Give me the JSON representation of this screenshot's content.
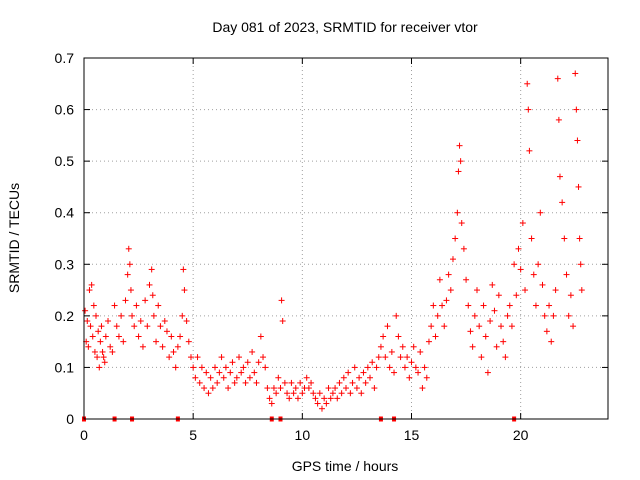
{
  "chart_data": {
    "type": "scatter",
    "title": "Day 081 of 2023, SRMTID for receiver vtor",
    "xlabel": "GPS time / hours",
    "ylabel": "SRMTID / TECUs",
    "xlim": [
      0,
      24
    ],
    "ylim": [
      0,
      0.7
    ],
    "xticks": [
      0,
      5,
      10,
      15,
      20
    ],
    "yticks": [
      0,
      0.1,
      0.2,
      0.3,
      0.4,
      0.5,
      0.6,
      0.7
    ],
    "xtick_labels": [
      "0",
      "5",
      "10",
      "15",
      "20"
    ],
    "ytick_labels": [
      "0",
      "0.1",
      "0.2",
      "0.3",
      "0.4",
      "0.5",
      "0.6",
      "0.7"
    ],
    "grid": true,
    "marker": "+",
    "series": [
      {
        "name": "SRMTID",
        "color": "#ff0000",
        "points": [
          [
            0.05,
            0.21
          ],
          [
            0.1,
            0.15
          ],
          [
            0.15,
            0.19
          ],
          [
            0.2,
            0.14
          ],
          [
            0.25,
            0.25
          ],
          [
            0.3,
            0.18
          ],
          [
            0.35,
            0.26
          ],
          [
            0.4,
            0.16
          ],
          [
            0.45,
            0.22
          ],
          [
            0.5,
            0.13
          ],
          [
            0.55,
            0.2
          ],
          [
            0.6,
            0.12
          ],
          [
            0.65,
            0.17
          ],
          [
            0.7,
            0.1
          ],
          [
            0.75,
            0.15
          ],
          [
            0.8,
            0.18
          ],
          [
            0.85,
            0.13
          ],
          [
            0.9,
            0.12
          ],
          [
            0.95,
            0.11
          ],
          [
            1.0,
            0.16
          ],
          [
            1.1,
            0.19
          ],
          [
            1.2,
            0.14
          ],
          [
            1.3,
            0.13
          ],
          [
            1.4,
            0.22
          ],
          [
            1.5,
            0.18
          ],
          [
            1.6,
            0.16
          ],
          [
            1.7,
            0.2
          ],
          [
            1.8,
            0.15
          ],
          [
            1.9,
            0.23
          ],
          [
            2.0,
            0.28
          ],
          [
            2.05,
            0.33
          ],
          [
            2.1,
            0.3
          ],
          [
            2.15,
            0.25
          ],
          [
            2.2,
            0.2
          ],
          [
            2.3,
            0.18
          ],
          [
            2.4,
            0.22
          ],
          [
            2.5,
            0.16
          ],
          [
            2.6,
            0.19
          ],
          [
            2.7,
            0.14
          ],
          [
            2.8,
            0.23
          ],
          [
            2.9,
            0.18
          ],
          [
            3.0,
            0.26
          ],
          [
            3.1,
            0.29
          ],
          [
            3.15,
            0.24
          ],
          [
            3.2,
            0.2
          ],
          [
            3.3,
            0.15
          ],
          [
            3.4,
            0.22
          ],
          [
            3.5,
            0.18
          ],
          [
            3.6,
            0.14
          ],
          [
            3.7,
            0.19
          ],
          [
            3.8,
            0.17
          ],
          [
            3.9,
            0.12
          ],
          [
            4.0,
            0.16
          ],
          [
            4.1,
            0.13
          ],
          [
            4.2,
            0.1
          ],
          [
            4.3,
            0.14
          ],
          [
            4.4,
            0.16
          ],
          [
            4.5,
            0.2
          ],
          [
            4.55,
            0.29
          ],
          [
            4.6,
            0.25
          ],
          [
            4.7,
            0.19
          ],
          [
            4.8,
            0.15
          ],
          [
            4.9,
            0.12
          ],
          [
            5.0,
            0.1
          ],
          [
            5.1,
            0.08
          ],
          [
            5.2,
            0.12
          ],
          [
            5.3,
            0.07
          ],
          [
            5.4,
            0.1
          ],
          [
            5.5,
            0.06
          ],
          [
            5.6,
            0.09
          ],
          [
            5.7,
            0.05
          ],
          [
            5.8,
            0.08
          ],
          [
            5.9,
            0.06
          ],
          [
            6.0,
            0.1
          ],
          [
            6.1,
            0.07
          ],
          [
            6.2,
            0.09
          ],
          [
            6.3,
            0.12
          ],
          [
            6.4,
            0.08
          ],
          [
            6.5,
            0.1
          ],
          [
            6.6,
            0.06
          ],
          [
            6.7,
            0.09
          ],
          [
            6.8,
            0.11
          ],
          [
            6.9,
            0.07
          ],
          [
            7.0,
            0.08
          ],
          [
            7.1,
            0.12
          ],
          [
            7.2,
            0.09
          ],
          [
            7.3,
            0.1
          ],
          [
            7.4,
            0.07
          ],
          [
            7.5,
            0.11
          ],
          [
            7.6,
            0.08
          ],
          [
            7.7,
            0.13
          ],
          [
            7.8,
            0.09
          ],
          [
            7.9,
            0.07
          ],
          [
            8.0,
            0.11
          ],
          [
            8.1,
            0.16
          ],
          [
            8.2,
            0.12
          ],
          [
            8.3,
            0.1
          ],
          [
            8.4,
            0.06
          ],
          [
            8.5,
            0.04
          ],
          [
            8.6,
            0.03
          ],
          [
            8.7,
            0.06
          ],
          [
            8.8,
            0.05
          ],
          [
            8.9,
            0.08
          ],
          [
            9.0,
            0.06
          ],
          [
            9.05,
            0.23
          ],
          [
            9.1,
            0.19
          ],
          [
            9.2,
            0.07
          ],
          [
            9.3,
            0.05
          ],
          [
            9.4,
            0.04
          ],
          [
            9.5,
            0.07
          ],
          [
            9.6,
            0.05
          ],
          [
            9.7,
            0.06
          ],
          [
            9.8,
            0.04
          ],
          [
            9.9,
            0.07
          ],
          [
            10.0,
            0.05
          ],
          [
            10.1,
            0.06
          ],
          [
            10.2,
            0.08
          ],
          [
            10.3,
            0.06
          ],
          [
            10.4,
            0.07
          ],
          [
            10.5,
            0.05
          ],
          [
            10.6,
            0.04
          ],
          [
            10.7,
            0.03
          ],
          [
            10.8,
            0.05
          ],
          [
            10.9,
            0.02
          ],
          [
            11.0,
            0.04
          ],
          [
            11.1,
            0.03
          ],
          [
            11.2,
            0.06
          ],
          [
            11.3,
            0.04
          ],
          [
            11.4,
            0.05
          ],
          [
            11.5,
            0.06
          ],
          [
            11.6,
            0.04
          ],
          [
            11.7,
            0.07
          ],
          [
            11.8,
            0.05
          ],
          [
            11.9,
            0.08
          ],
          [
            12.0,
            0.06
          ],
          [
            12.1,
            0.09
          ],
          [
            12.2,
            0.05
          ],
          [
            12.3,
            0.07
          ],
          [
            12.4,
            0.1
          ],
          [
            12.5,
            0.06
          ],
          [
            12.6,
            0.08
          ],
          [
            12.7,
            0.05
          ],
          [
            12.8,
            0.09
          ],
          [
            12.9,
            0.07
          ],
          [
            13.0,
            0.1
          ],
          [
            13.1,
            0.08
          ],
          [
            13.2,
            0.11
          ],
          [
            13.3,
            0.06
          ],
          [
            13.4,
            0.1
          ],
          [
            13.5,
            0.12
          ],
          [
            13.6,
            0.14
          ],
          [
            13.7,
            0.16
          ],
          [
            13.8,
            0.12
          ],
          [
            13.9,
            0.18
          ],
          [
            14.0,
            0.1
          ],
          [
            14.1,
            0.13
          ],
          [
            14.2,
            0.09
          ],
          [
            14.3,
            0.2
          ],
          [
            14.4,
            0.16
          ],
          [
            14.5,
            0.12
          ],
          [
            14.6,
            0.14
          ],
          [
            14.7,
            0.1
          ],
          [
            14.8,
            0.12
          ],
          [
            14.9,
            0.08
          ],
          [
            15.0,
            0.11
          ],
          [
            15.1,
            0.14
          ],
          [
            15.2,
            0.1
          ],
          [
            15.3,
            0.09
          ],
          [
            15.4,
            0.13
          ],
          [
            15.5,
            0.06
          ],
          [
            15.6,
            0.1
          ],
          [
            15.7,
            0.08
          ],
          [
            15.8,
            0.15
          ],
          [
            15.9,
            0.18
          ],
          [
            16.0,
            0.22
          ],
          [
            16.1,
            0.16
          ],
          [
            16.2,
            0.2
          ],
          [
            16.3,
            0.27
          ],
          [
            16.4,
            0.22
          ],
          [
            16.5,
            0.18
          ],
          [
            16.6,
            0.23
          ],
          [
            16.7,
            0.28
          ],
          [
            16.8,
            0.25
          ],
          [
            16.9,
            0.31
          ],
          [
            17.0,
            0.35
          ],
          [
            17.1,
            0.4
          ],
          [
            17.15,
            0.48
          ],
          [
            17.2,
            0.53
          ],
          [
            17.25,
            0.5
          ],
          [
            17.3,
            0.38
          ],
          [
            17.4,
            0.33
          ],
          [
            17.5,
            0.27
          ],
          [
            17.6,
            0.22
          ],
          [
            17.7,
            0.17
          ],
          [
            17.8,
            0.14
          ],
          [
            17.9,
            0.2
          ],
          [
            18.0,
            0.25
          ],
          [
            18.1,
            0.18
          ],
          [
            18.2,
            0.12
          ],
          [
            18.3,
            0.22
          ],
          [
            18.4,
            0.16
          ],
          [
            18.5,
            0.09
          ],
          [
            18.6,
            0.19
          ],
          [
            18.7,
            0.26
          ],
          [
            18.8,
            0.21
          ],
          [
            18.9,
            0.14
          ],
          [
            19.0,
            0.24
          ],
          [
            19.1,
            0.18
          ],
          [
            19.2,
            0.15
          ],
          [
            19.3,
            0.12
          ],
          [
            19.4,
            0.2
          ],
          [
            19.5,
            0.22
          ],
          [
            19.6,
            0.18
          ],
          [
            19.7,
            0.3
          ],
          [
            19.8,
            0.24
          ],
          [
            19.9,
            0.33
          ],
          [
            20.0,
            0.29
          ],
          [
            20.1,
            0.38
          ],
          [
            20.2,
            0.25
          ],
          [
            20.3,
            0.65
          ],
          [
            20.35,
            0.6
          ],
          [
            20.4,
            0.52
          ],
          [
            20.5,
            0.35
          ],
          [
            20.6,
            0.28
          ],
          [
            20.7,
            0.22
          ],
          [
            20.8,
            0.3
          ],
          [
            20.9,
            0.4
          ],
          [
            21.0,
            0.26
          ],
          [
            21.1,
            0.2
          ],
          [
            21.2,
            0.17
          ],
          [
            21.3,
            0.22
          ],
          [
            21.4,
            0.15
          ],
          [
            21.5,
            0.2
          ],
          [
            21.6,
            0.25
          ],
          [
            21.7,
            0.66
          ],
          [
            21.75,
            0.58
          ],
          [
            21.8,
            0.47
          ],
          [
            21.9,
            0.42
          ],
          [
            22.0,
            0.35
          ],
          [
            22.1,
            0.28
          ],
          [
            22.2,
            0.2
          ],
          [
            22.3,
            0.24
          ],
          [
            22.4,
            0.18
          ],
          [
            22.5,
            0.67
          ],
          [
            22.55,
            0.6
          ],
          [
            22.6,
            0.54
          ],
          [
            22.65,
            0.45
          ],
          [
            22.7,
            0.35
          ],
          [
            22.75,
            0.3
          ],
          [
            22.8,
            0.25
          ]
        ],
        "baseline_markers_x": [
          0.0,
          1.4,
          2.2,
          4.3,
          8.6,
          9.0,
          13.6,
          14.2,
          19.7
        ]
      }
    ]
  }
}
